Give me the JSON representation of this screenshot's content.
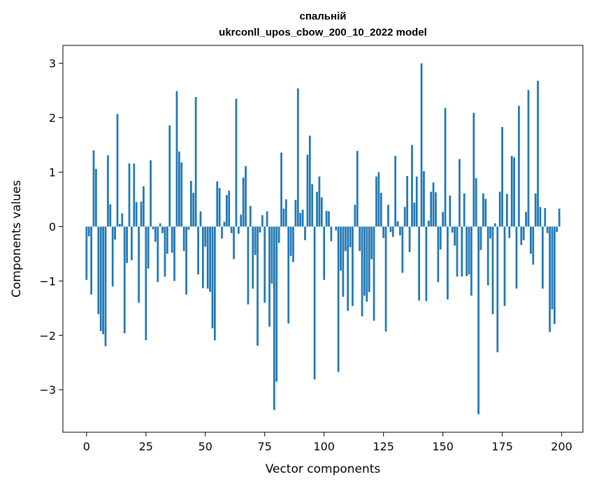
{
  "chart_data": {
    "type": "bar",
    "title": "спальній",
    "subtitle": "ukrconll_upos_cbow_200_10_2022 model",
    "xlabel": "Vector components",
    "ylabel": "Components values",
    "xlim": [
      -9.95,
      208.95
    ],
    "ylim": [
      -3.78,
      3.33
    ],
    "xticks": [
      0,
      25,
      50,
      75,
      100,
      125,
      150,
      175,
      200
    ],
    "xtick_labels": [
      "0",
      "25",
      "50",
      "75",
      "100",
      "125",
      "150",
      "175",
      "200"
    ],
    "yticks": [
      -3,
      -2,
      -1,
      0,
      1,
      2,
      3
    ],
    "ytick_labels": [
      "−3",
      "−2",
      "−1",
      "0",
      "1",
      "2",
      "3"
    ],
    "grid": false,
    "bar_color": "#1f77b4",
    "x": [
      0,
      1,
      2,
      3,
      4,
      5,
      6,
      7,
      8,
      9,
      10,
      11,
      12,
      13,
      14,
      15,
      16,
      17,
      18,
      19,
      20,
      21,
      22,
      23,
      24,
      25,
      26,
      27,
      28,
      29,
      30,
      31,
      32,
      33,
      34,
      35,
      36,
      37,
      38,
      39,
      40,
      41,
      42,
      43,
      44,
      45,
      46,
      47,
      48,
      49,
      50,
      51,
      52,
      53,
      54,
      55,
      56,
      57,
      58,
      59,
      60,
      61,
      62,
      63,
      64,
      65,
      66,
      67,
      68,
      69,
      70,
      71,
      72,
      73,
      74,
      75,
      76,
      77,
      78,
      79,
      80,
      81,
      82,
      83,
      84,
      85,
      86,
      87,
      88,
      89,
      90,
      91,
      92,
      93,
      94,
      95,
      96,
      97,
      98,
      99,
      100,
      101,
      102,
      103,
      104,
      105,
      106,
      107,
      108,
      109,
      110,
      111,
      112,
      113,
      114,
      115,
      116,
      117,
      118,
      119,
      120,
      121,
      122,
      123,
      124,
      125,
      126,
      127,
      128,
      129,
      130,
      131,
      132,
      133,
      134,
      135,
      136,
      137,
      138,
      139,
      140,
      141,
      142,
      143,
      144,
      145,
      146,
      147,
      148,
      149,
      150,
      151,
      152,
      153,
      154,
      155,
      156,
      157,
      158,
      159,
      160,
      161,
      162,
      163,
      164,
      165,
      166,
      167,
      168,
      169,
      170,
      171,
      172,
      173,
      174,
      175,
      176,
      177,
      178,
      179,
      180,
      181,
      182,
      183,
      184,
      185,
      186,
      187,
      188,
      189,
      190,
      191,
      192,
      193,
      194,
      195,
      196,
      197,
      198,
      199
    ],
    "values": [
      -0.98,
      -0.18,
      -1.25,
      1.4,
      1.06,
      -1.61,
      -1.92,
      -1.98,
      -2.2,
      1.31,
      0.41,
      -1.1,
      -0.24,
      2.07,
      0.05,
      0.24,
      -1.96,
      -0.67,
      1.16,
      -0.62,
      1.16,
      0.45,
      -1.4,
      0.46,
      0.74,
      -2.09,
      -0.77,
      1.22,
      -0.05,
      -0.28,
      -1.02,
      0.06,
      -0.12,
      -0.92,
      -0.5,
      1.86,
      -0.48,
      -1.0,
      2.49,
      1.38,
      1.18,
      -0.45,
      -1.25,
      -0.06,
      0.84,
      0.62,
      2.38,
      -0.88,
      0.28,
      -1.13,
      -0.37,
      -1.14,
      -1.2,
      -1.87,
      -2.09,
      0.83,
      0.71,
      -0.22,
      0.09,
      0.58,
      0.66,
      -0.12,
      -0.6,
      2.35,
      -0.13,
      0.22,
      0.9,
      1.11,
      -1.43,
      0.38,
      -1.14,
      -0.52,
      -2.19,
      -0.11,
      0.21,
      -1.4,
      0.28,
      -1.84,
      -1.05,
      -3.37,
      -2.85,
      -0.3,
      1.36,
      0.33,
      0.5,
      -1.78,
      -0.54,
      -0.65,
      0.49,
      2.54,
      0.25,
      0.31,
      -0.25,
      1.32,
      1.67,
      0.78,
      -2.81,
      0.64,
      0.92,
      0.54,
      -0.98,
      0.29,
      0.28,
      -0.27,
      0.0,
      -0.07,
      -2.67,
      -0.81,
      -1.29,
      -0.45,
      -1.55,
      -0.38,
      -1.46,
      0.4,
      1.39,
      -0.45,
      -1.65,
      -1.27,
      -1.38,
      -1.2,
      -0.6,
      -1.73,
      0.92,
      1.0,
      0.62,
      -0.21,
      -1.93,
      0.4,
      -0.1,
      -0.19,
      1.3,
      0.1,
      -0.16,
      -0.85,
      0.36,
      0.93,
      -0.47,
      1.5,
      0.44,
      0.92,
      -1.36,
      3.0,
      1.02,
      -1.37,
      0.11,
      0.64,
      0.81,
      0.63,
      -1.02,
      -0.42,
      0.27,
      2.18,
      -1.34,
      0.57,
      -0.11,
      -0.35,
      -0.92,
      1.24,
      -0.92,
      0.61,
      -0.91,
      -0.88,
      -1.27,
      2.09,
      0.89,
      -3.45,
      -0.43,
      0.61,
      0.51,
      -1.08,
      -0.22,
      -1.61,
      0.06,
      -2.31,
      0.64,
      1.83,
      -1.46,
      0.6,
      -0.21,
      1.3,
      1.27,
      -1.14,
      2.22,
      -0.34,
      -0.25,
      0.27,
      2.51,
      -0.5,
      -0.7,
      0.61,
      2.68,
      0.36,
      -1.14,
      0.34,
      -0.12,
      -1.94,
      -1.52,
      -1.79,
      -0.1,
      0.33
    ]
  }
}
